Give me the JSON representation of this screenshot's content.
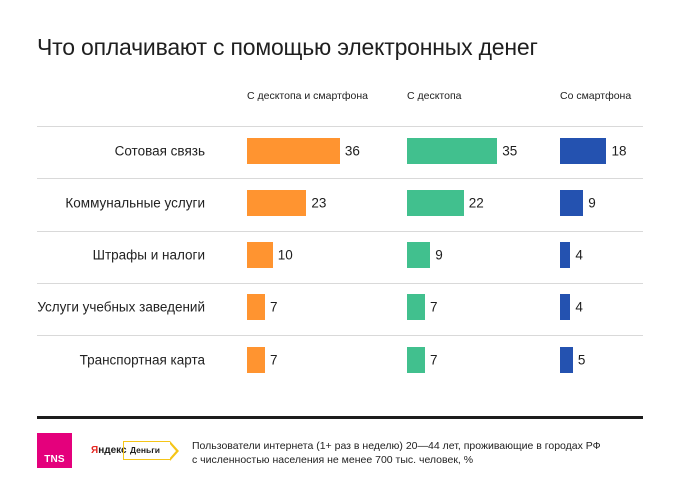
{
  "title": "Что оплачивают с помощью электронных денег",
  "chart_data": {
    "type": "bar",
    "orientation": "horizontal",
    "title": "Что оплачивают с помощью электронных денег",
    "categories": [
      "Сотовая связь",
      "Коммунальные услуги",
      "Штрафы и налоги",
      "Услуги учебных заведений",
      "Транспортная карта"
    ],
    "series": [
      {
        "name": "С десктопа и смартфона",
        "color": "#ff9430",
        "values": [
          36,
          23,
          10,
          7,
          7
        ]
      },
      {
        "name": "С десктопа",
        "color": "#41c08e",
        "values": [
          35,
          22,
          9,
          7,
          7
        ]
      },
      {
        "name": "Со смартфона",
        "color": "#2452b0",
        "values": [
          18,
          9,
          4,
          4,
          5
        ]
      }
    ],
    "unit": "%",
    "xlabel": "",
    "ylabel": "",
    "grid": false,
    "legend": "column headers"
  },
  "footer": {
    "tns_logo": "TNS",
    "yandex_logo": {
      "ya": "Я",
      "rest": "ндекс",
      "dengi": "Деньги"
    },
    "note_line1": "Пользователи интернета (1+ раз в неделю) 20—44 лет, проживающие в городах РФ",
    "note_line2": "с численностью населения не менее 700 тыс. человек, %"
  }
}
